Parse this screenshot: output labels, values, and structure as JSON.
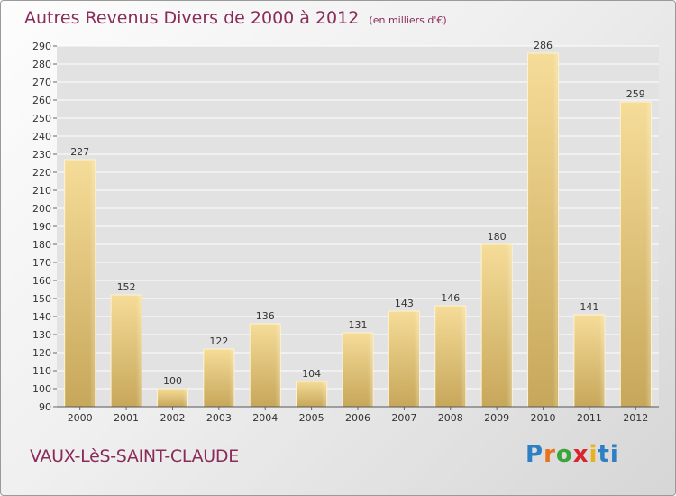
{
  "title": "Autres Revenus Divers de 2000 à 2012",
  "subtitle": "(en milliers d'€)",
  "commune": "VAUX-LèS-SAINT-CLAUDE",
  "logo_letters": [
    "P",
    "r",
    "o",
    "x",
    "i",
    "ti"
  ],
  "chart_data": {
    "type": "bar",
    "categories": [
      "2000",
      "2001",
      "2002",
      "2003",
      "2004",
      "2005",
      "2006",
      "2007",
      "2008",
      "2009",
      "2010",
      "2011",
      "2012"
    ],
    "values": [
      227,
      152,
      100,
      122,
      136,
      104,
      131,
      143,
      146,
      180,
      286,
      141,
      259
    ],
    "ylim": [
      90,
      290
    ],
    "yticks": [
      90,
      100,
      110,
      120,
      130,
      140,
      150,
      160,
      170,
      180,
      190,
      200,
      210,
      220,
      230,
      240,
      250,
      260,
      270,
      280,
      290
    ],
    "grid": true,
    "bar_color": "#e8cb82"
  }
}
